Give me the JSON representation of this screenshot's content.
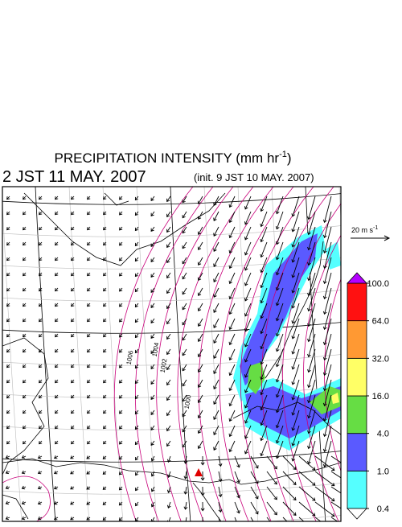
{
  "header": {
    "title": "PRECIPITATION INTENSITY (mm hr",
    "title_exponent": "-1",
    "title_close": ")",
    "valid_time": "2 JST 11 MAY. 2007",
    "init_time": "(init. 9 JST 10 MAY. 2007)"
  },
  "reference_vector": {
    "label": "20 m s",
    "exponent": "-1"
  },
  "isobar_labels": [
    "1000",
    "1002",
    "1004",
    "1006"
  ],
  "colorbar": {
    "levels": [
      {
        "value": 0.4,
        "label": "0.4"
      },
      {
        "value": 1,
        "label": "1.0"
      },
      {
        "value": 4,
        "label": "4.0"
      },
      {
        "value": 16,
        "label": "16.0"
      },
      {
        "value": 32,
        "label": "32.0"
      },
      {
        "value": 64,
        "label": "64.0"
      },
      {
        "value": 100,
        "label": "100.0"
      }
    ],
    "colors": [
      "#55ffff",
      "#5a5aff",
      "#66dd44",
      "#ffff66",
      "#ff9933",
      "#ff1111"
    ],
    "under_color": "#ffffff",
    "over_color": "#b400ff"
  }
}
